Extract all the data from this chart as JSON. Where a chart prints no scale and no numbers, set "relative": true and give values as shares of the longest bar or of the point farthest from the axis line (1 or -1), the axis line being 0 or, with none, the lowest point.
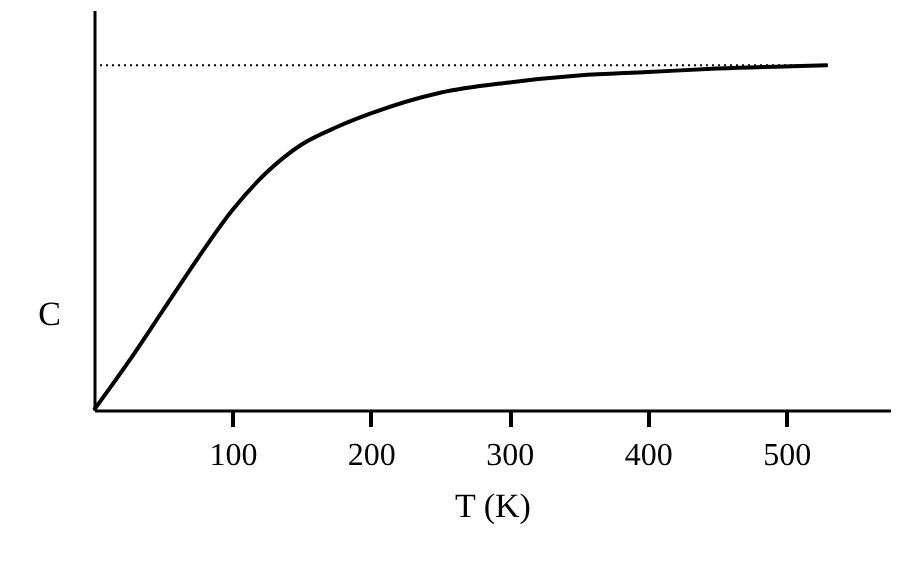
{
  "chart_data": {
    "type": "line",
    "relative": true,
    "xlabel": "T (K)",
    "ylabel": "C",
    "x": [
      0,
      25,
      50,
      75,
      100,
      125,
      150,
      175,
      200,
      250,
      300,
      350,
      400,
      450,
      530
    ],
    "series": [
      {
        "color": "#000000",
        "values": [
          0,
          0.14,
          0.29,
          0.44,
          0.58,
          0.69,
          0.77,
          0.82,
          0.86,
          0.92,
          0.95,
          0.97,
          0.98,
          0.99,
          1.0
        ]
      }
    ],
    "xlim": [
      0,
      575
    ],
    "xticks": [
      100,
      200,
      300,
      400,
      500
    ],
    "ref_lines": [
      {
        "axis": "y",
        "value": 1,
        "color": "#000000",
        "line_style": "dotted"
      }
    ],
    "marker": "none",
    "line_style": "solid"
  }
}
